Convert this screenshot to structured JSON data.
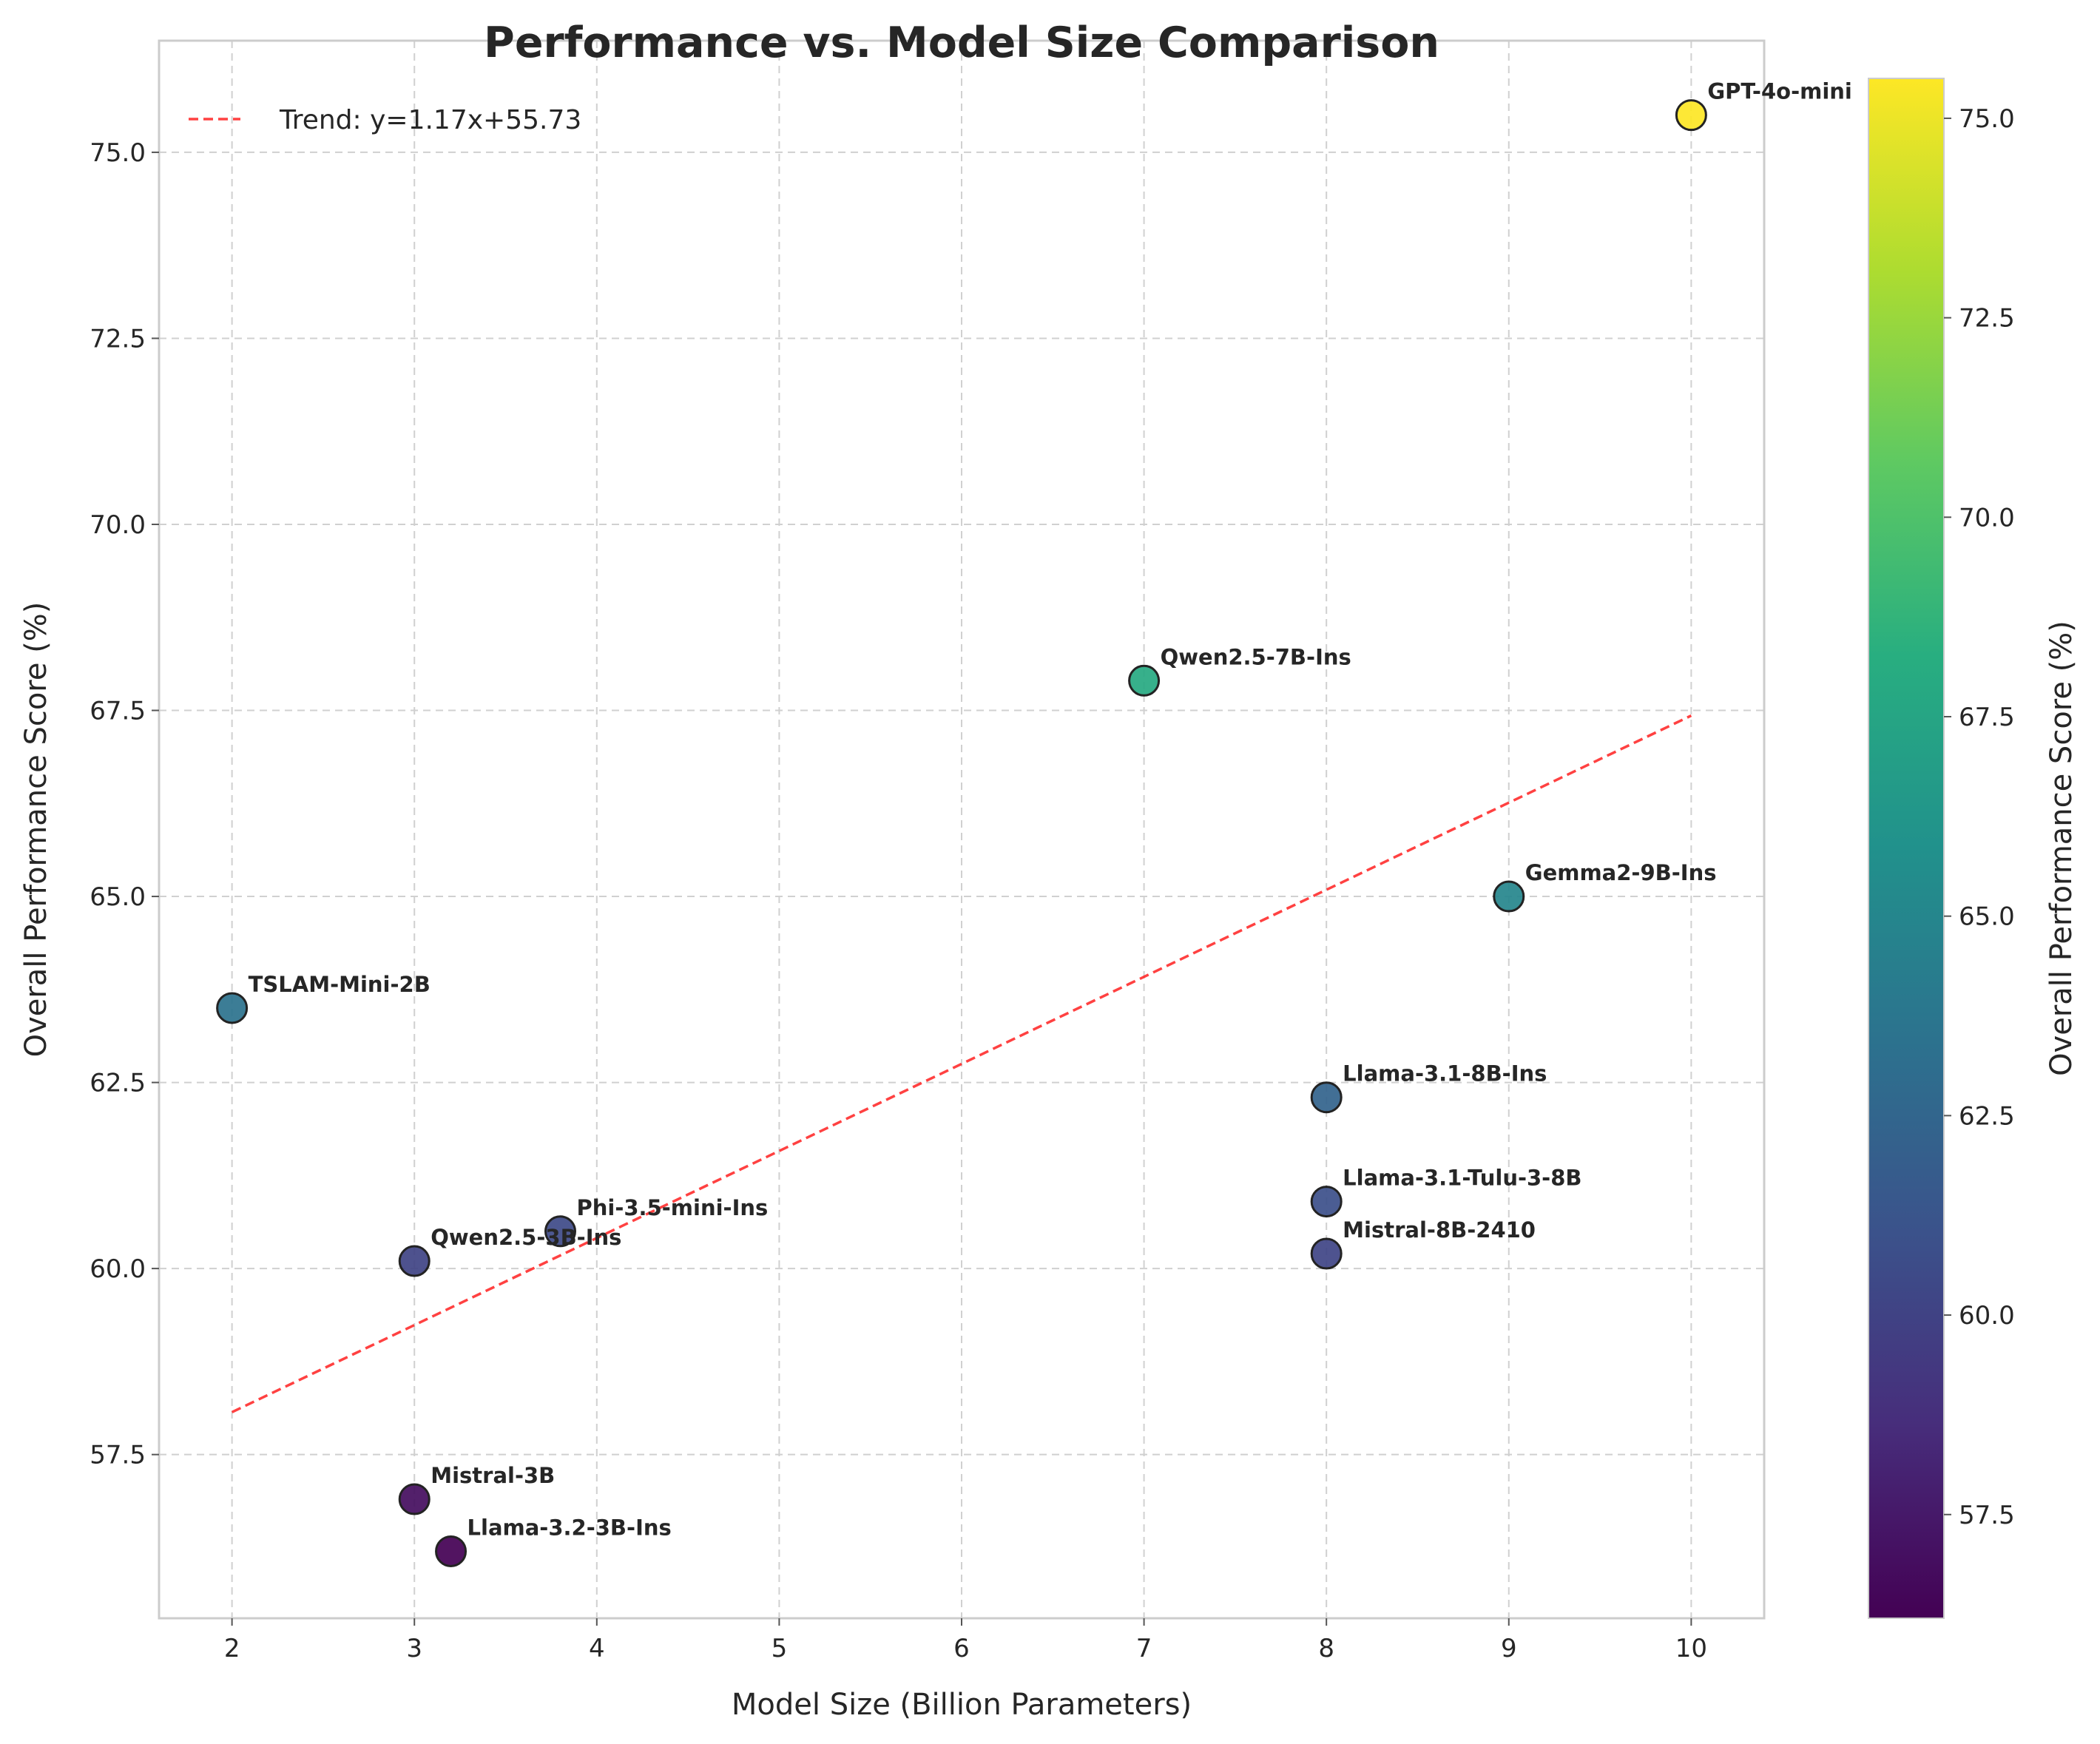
{
  "chart_data": {
    "type": "scatter",
    "title": "Performance vs. Model Size Comparison",
    "xlabel": "Model Size (Billion Parameters)",
    "ylabel": "Overall Performance Score (%)",
    "xlim": [
      1.6,
      10.4
    ],
    "ylim": [
      55.3,
      76.5
    ],
    "xticks": [
      2,
      3,
      4,
      5,
      6,
      7,
      8,
      9,
      10
    ],
    "yticks": [
      57.5,
      60.0,
      62.5,
      65.0,
      67.5,
      70.0,
      72.5,
      75.0
    ],
    "grid": true,
    "points": [
      {
        "name": "TSLAM-Mini-2B",
        "x": 2.0,
        "y": 63.5
      },
      {
        "name": "Qwen2.5-3B-Ins",
        "x": 3.0,
        "y": 60.1
      },
      {
        "name": "Mistral-3B",
        "x": 3.0,
        "y": 56.9
      },
      {
        "name": "Llama-3.2-3B-Ins",
        "x": 3.2,
        "y": 56.2
      },
      {
        "name": "Phi-3.5-mini-Ins",
        "x": 3.8,
        "y": 60.5
      },
      {
        "name": "Qwen2.5-7B-Ins",
        "x": 7.0,
        "y": 67.9
      },
      {
        "name": "Llama-3.1-8B-Ins",
        "x": 8.0,
        "y": 62.3
      },
      {
        "name": "Llama-3.1-Tulu-3-8B",
        "x": 8.0,
        "y": 60.9
      },
      {
        "name": "Mistral-8B-2410",
        "x": 8.0,
        "y": 60.2
      },
      {
        "name": "Gemma2-9B-Ins",
        "x": 9.0,
        "y": 65.0
      },
      {
        "name": "GPT-4o-mini",
        "x": 10.0,
        "y": 75.5
      }
    ],
    "trend": {
      "label": "Trend: y=1.17x+55.73",
      "slope": 1.17,
      "intercept": 55.73,
      "x_range": [
        2,
        10
      ],
      "color": "#ff2020",
      "style": "dashed"
    },
    "legend_position": "top-left",
    "colorbar": {
      "label": "Overall Performance Score (%)",
      "colormap": "viridis",
      "range": [
        56.2,
        75.5
      ],
      "ticks": [
        57.5,
        60.0,
        62.5,
        65.0,
        67.5,
        70.0,
        72.5,
        75.0
      ]
    }
  }
}
